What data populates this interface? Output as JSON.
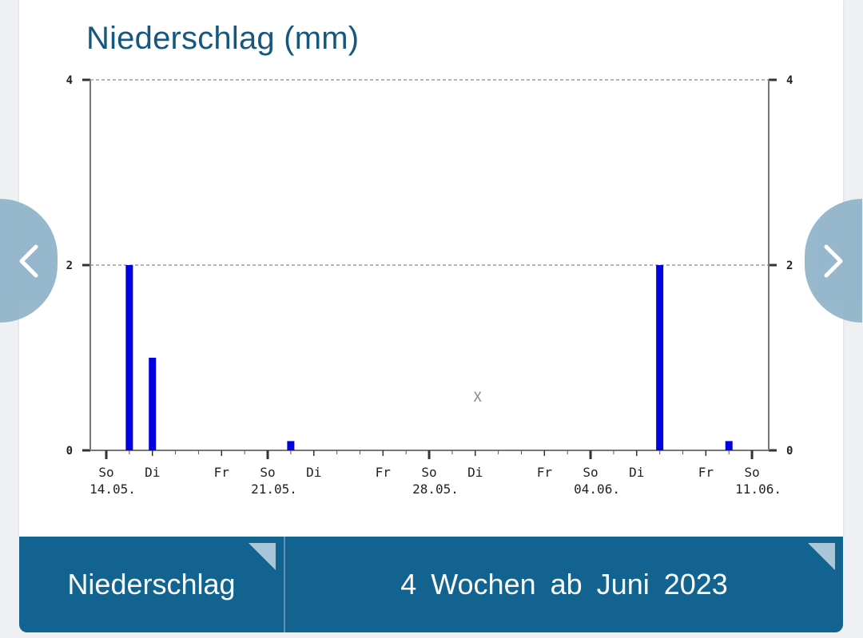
{
  "page": {
    "title": "Niederschlag (mm)"
  },
  "chart_data": {
    "type": "bar",
    "ylim": [
      0,
      4
    ],
    "yticks": [
      "0",
      "2",
      "4"
    ],
    "grid": "horizontal-dashed",
    "x_day_labels": [
      {
        "label": "So",
        "day": 0
      },
      {
        "label": "Di",
        "day": 2
      },
      {
        "label": "Fr",
        "day": 5
      },
      {
        "label": "So",
        "day": 7
      },
      {
        "label": "Di",
        "day": 9
      },
      {
        "label": "Fr",
        "day": 12
      },
      {
        "label": "So",
        "day": 14
      },
      {
        "label": "Di",
        "day": 16
      },
      {
        "label": "Fr",
        "day": 19
      },
      {
        "label": "So",
        "day": 21
      },
      {
        "label": "Di",
        "day": 23
      },
      {
        "label": "Fr",
        "day": 26
      },
      {
        "label": "So",
        "day": 28
      }
    ],
    "x_date_labels": [
      {
        "label": "14.05.",
        "day": 0
      },
      {
        "label": "21.05.",
        "day": 7
      },
      {
        "label": "28.05.",
        "day": 14
      },
      {
        "label": "04.06.",
        "day": 21
      },
      {
        "label": "11.06.",
        "day": 28
      }
    ],
    "values": [
      {
        "date": "15.05.",
        "day": 1,
        "value": 2.0
      },
      {
        "date": "16.05.",
        "day": 2,
        "value": 1.0
      },
      {
        "date": "22.05.",
        "day": 8,
        "value": 0.1
      },
      {
        "date": "07.06.",
        "day": 24,
        "value": 2.0
      },
      {
        "date": "10.06.",
        "day": 27,
        "value": 0.1
      }
    ],
    "annotation": "X",
    "bar_color": "#0000e0"
  },
  "controls": {
    "prev_icon": "chevron-left-icon",
    "next_icon": "chevron-right-icon",
    "parameter_label": "Niederschlag",
    "period_label": "4 Wochen ab Juni 2023"
  },
  "colors": {
    "title": "#16577f",
    "bottom_bar": "#136391",
    "nav_button": "#8fb3c8"
  }
}
